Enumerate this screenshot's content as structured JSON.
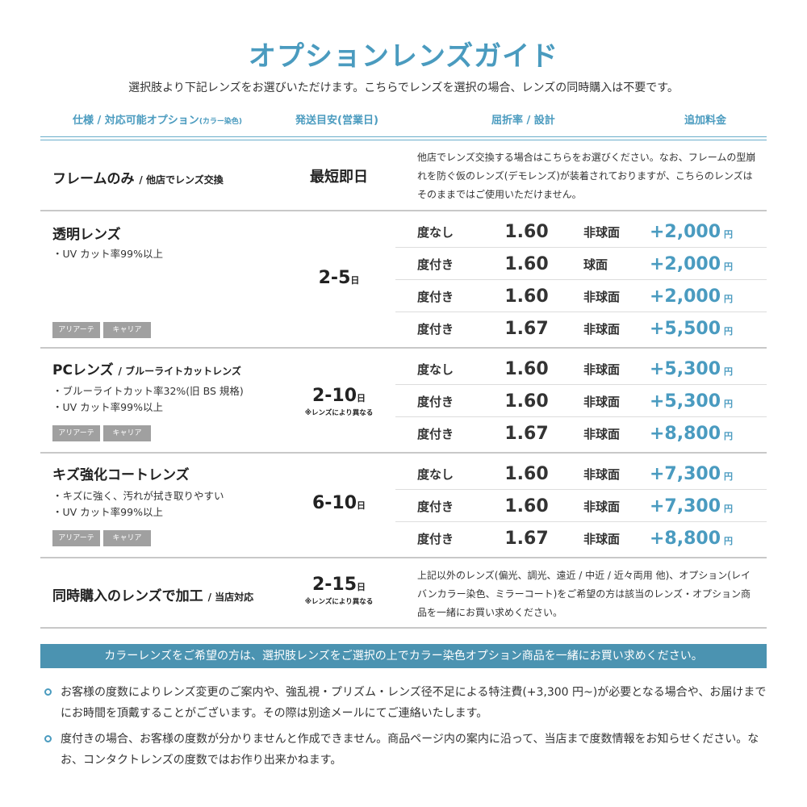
{
  "title": "オプションレンズガイド",
  "subtitle": "選択肢より下記レンズをお選びいただけます。こちらでレンズを選択の場合、レンズの同時購入は不要です。",
  "columns": {
    "spec": "仕様 / 対応可能オプション",
    "spec_small": "(カラー染色)",
    "shipping": "発送目安(営業日)",
    "index": "屈折率 / 設計",
    "price": "追加料金"
  },
  "frame_only": {
    "name": "フレームのみ",
    "name_sub": "/ 他店でレンズ交換",
    "days": "最短即日",
    "description": "他店でレンズ交換する場合はこちらをお選びください。なお、フレームの型崩れを防ぐ仮のレンズ(デモレンズ)が装着されておりますが、こちらのレンズはそのままではご使用いただけません。"
  },
  "tags": [
    "アリアーテ",
    "キャリア"
  ],
  "unit_day": "日",
  "unit_yen": "円",
  "lens_groups": [
    {
      "name": "透明レンズ",
      "name_sub": "",
      "features": [
        "・UV カット率99%以上"
      ],
      "days": "2-5",
      "days_note": "",
      "rows": [
        {
          "type": "度なし",
          "index": "1.60",
          "design": "非球面",
          "price": "+2,000"
        },
        {
          "type": "度付き",
          "index": "1.60",
          "design": "球面",
          "price": "+2,000"
        },
        {
          "type": "度付き",
          "index": "1.60",
          "design": "非球面",
          "price": "+2,000"
        },
        {
          "type": "度付き",
          "index": "1.67",
          "design": "非球面",
          "price": "+5,500"
        }
      ]
    },
    {
      "name": "PCレンズ",
      "name_sub": "/ ブルーライトカットレンズ",
      "features": [
        "・ブルーライトカット率32%(旧 BS 規格)",
        "・UV カット率99%以上"
      ],
      "days": "2-10",
      "days_note": "※レンズにより異なる",
      "rows": [
        {
          "type": "度なし",
          "index": "1.60",
          "design": "非球面",
          "price": "+5,300"
        },
        {
          "type": "度付き",
          "index": "1.60",
          "design": "非球面",
          "price": "+5,300"
        },
        {
          "type": "度付き",
          "index": "1.67",
          "design": "非球面",
          "price": "+8,800"
        }
      ]
    },
    {
      "name": "キズ強化コートレンズ",
      "name_sub": "",
      "features": [
        "・キズに強く、汚れが拭き取りやすい",
        "・UV カット率99%以上"
      ],
      "days": "6-10",
      "days_note": "",
      "rows": [
        {
          "type": "度なし",
          "index": "1.60",
          "design": "非球面",
          "price": "+7,300"
        },
        {
          "type": "度付き",
          "index": "1.60",
          "design": "非球面",
          "price": "+7,300"
        },
        {
          "type": "度付き",
          "index": "1.67",
          "design": "非球面",
          "price": "+8,800"
        }
      ]
    }
  ],
  "same_time": {
    "name": "同時購入のレンズで加工",
    "name_sub": "/ 当店対応",
    "days": "2-15",
    "days_note": "※レンズにより異なる",
    "description": "上記以外のレンズ(偏光、調光、遠近 / 中近 / 近々両用 他)、オプション(レイバンカラー染色、ミラーコート)をご希望の方は該当のレンズ・オプション商品を一緒にお買い求めください。"
  },
  "banner": "カラーレンズをご希望の方は、選択肢レンズをご選択の上でカラー染色オプション商品を一緒にお買い求めください。",
  "notes": [
    "お客様の度数によりレンズ変更のご案内や、強乱視・プリズム・レンズ径不足による特注費(+3,300 円~)が必要となる場合や、お届けまでにお時間を頂戴することがございます。その際は別途メールにてご連絡いたします。",
    "度付きの場合、お客様の度数が分かりませんと作成できません。商品ページ内の案内に沿って、当店まで度数情報をお知らせください。なお、コンタクトレンズの度数ではお作り出来かねます。"
  ],
  "colors": {
    "accent": "#4a9bbf",
    "banner": "#4b93b1",
    "tag": "#a0a0a0"
  }
}
